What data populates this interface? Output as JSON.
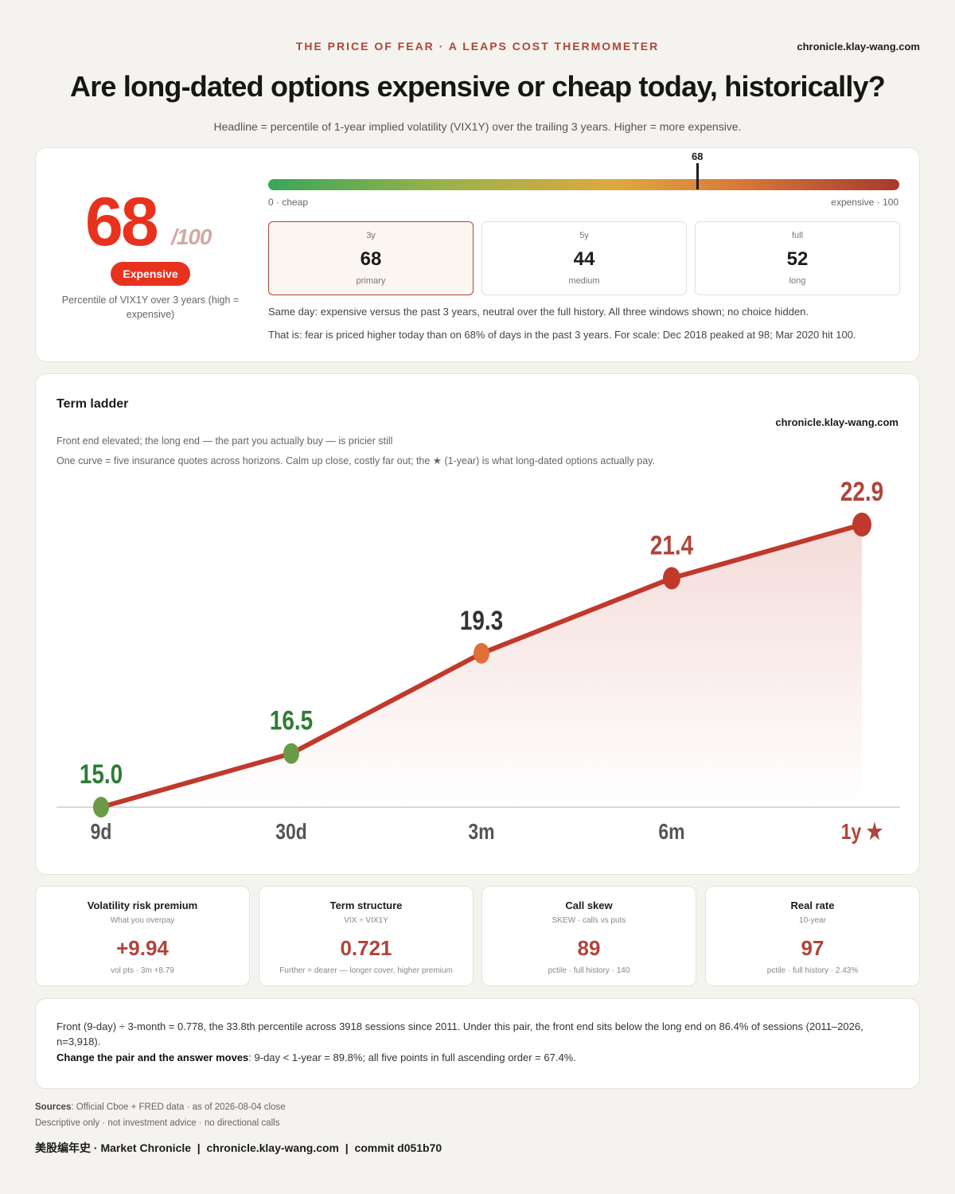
{
  "header": {
    "kicker": "THE PRICE OF FEAR · A LEAPS COST THERMOMETER",
    "site": "chronicle.klay-wang.com",
    "headline": "Are long-dated options expensive or cheap today, historically?",
    "subhead": "Headline = percentile of 1-year implied volatility (VIX1Y) over the trailing 3 years. Higher = more expensive."
  },
  "score": {
    "value": "68",
    "denom": "/100",
    "badge": "Expensive",
    "caption": "Percentile of VIX1Y over 3 years (high = expensive)",
    "gauge_value": 68,
    "gauge_marker_label": "68",
    "gauge_min_label": "0 · cheap",
    "gauge_max_label": "expensive · 100",
    "windows": [
      {
        "label": "3y",
        "value": "68",
        "sub": "primary"
      },
      {
        "label": "5y",
        "value": "44",
        "sub": "medium"
      },
      {
        "label": "full",
        "value": "52",
        "sub": "long"
      }
    ],
    "note1": "Same day: expensive versus the past 3 years, neutral over the full history. All three windows shown; no choice hidden.",
    "note2": "That is: fear is priced higher today than on 68% of days in the past 3 years. For scale: Dec 2018 peaked at 98; Mar 2020 hit 100."
  },
  "ladder": {
    "title": "Term ladder",
    "site": "chronicle.klay-wang.com",
    "sub1": "Front end elevated; the long end — the part you actually buy — is pricier still",
    "sub2": "One curve = five insurance quotes across horizons. Calm up close, costly far out; the ★ (1-year) is what long-dated options actually pay."
  },
  "chart_data": {
    "type": "line",
    "categories": [
      "9d",
      "30d",
      "3m",
      "6m",
      "1y ★"
    ],
    "values": [
      15.0,
      16.5,
      19.3,
      21.4,
      22.9
    ],
    "labels": [
      "15.0",
      "16.5",
      "19.3",
      "21.4",
      "22.9"
    ],
    "point_colors": [
      "#6a9a45",
      "#6a9a45",
      "#e07038",
      "#c0392b",
      "#c0392b"
    ],
    "label_colors": [
      "#2d7d32",
      "#2d7d32",
      "#333333",
      "#b0443a",
      "#b0443a"
    ],
    "category_colors": [
      "#555555",
      "#555555",
      "#555555",
      "#555555",
      "#b0443a"
    ],
    "line_color": "#c0392b",
    "ylim": [
      15.0,
      22.9
    ],
    "grid": false,
    "highlight_index": 4
  },
  "metrics": [
    {
      "title": "Volatility risk premium",
      "sub": "What you overpay",
      "value": "+9.94",
      "foot": "vol pts · 3m +8.79"
    },
    {
      "title": "Term structure",
      "sub": "VIX ÷ VIX1Y",
      "value": "0.721",
      "foot": "Further = dearer — longer cover, higher premium"
    },
    {
      "title": "Call skew",
      "sub": "SKEW · calls vs puts",
      "value": "89",
      "foot": "pctile · full history · 140"
    },
    {
      "title": "Real rate",
      "sub": "10-year",
      "value": "97",
      "foot": "pctile · full history · 2.43%"
    }
  ],
  "note": {
    "p1": "Front (9-day) ÷ 3-month = 0.778, the 33.8th percentile across 3918 sessions since 2011. Under this pair, the front end sits below the long end on 86.4% of sessions (2011–2026, n=3,918).",
    "p2_bold": "Change the pair and the answer moves",
    "p2_rest": ": 9-day < 1-year = 89.8%; all five points in full ascending order = 67.4%."
  },
  "footer": {
    "sources_label": "Sources",
    "sources_text": ": Official Cboe + FRED data · as of 2026-08-04 close",
    "disclaimer": "Descriptive only · not investment advice · no directional calls",
    "credit": "美股编年史 · Market Chronicle  |  chronicle.klay-wang.com  |  commit d051b70"
  },
  "colors": {
    "accent": "#b0443a",
    "alert": "#e8321e"
  }
}
